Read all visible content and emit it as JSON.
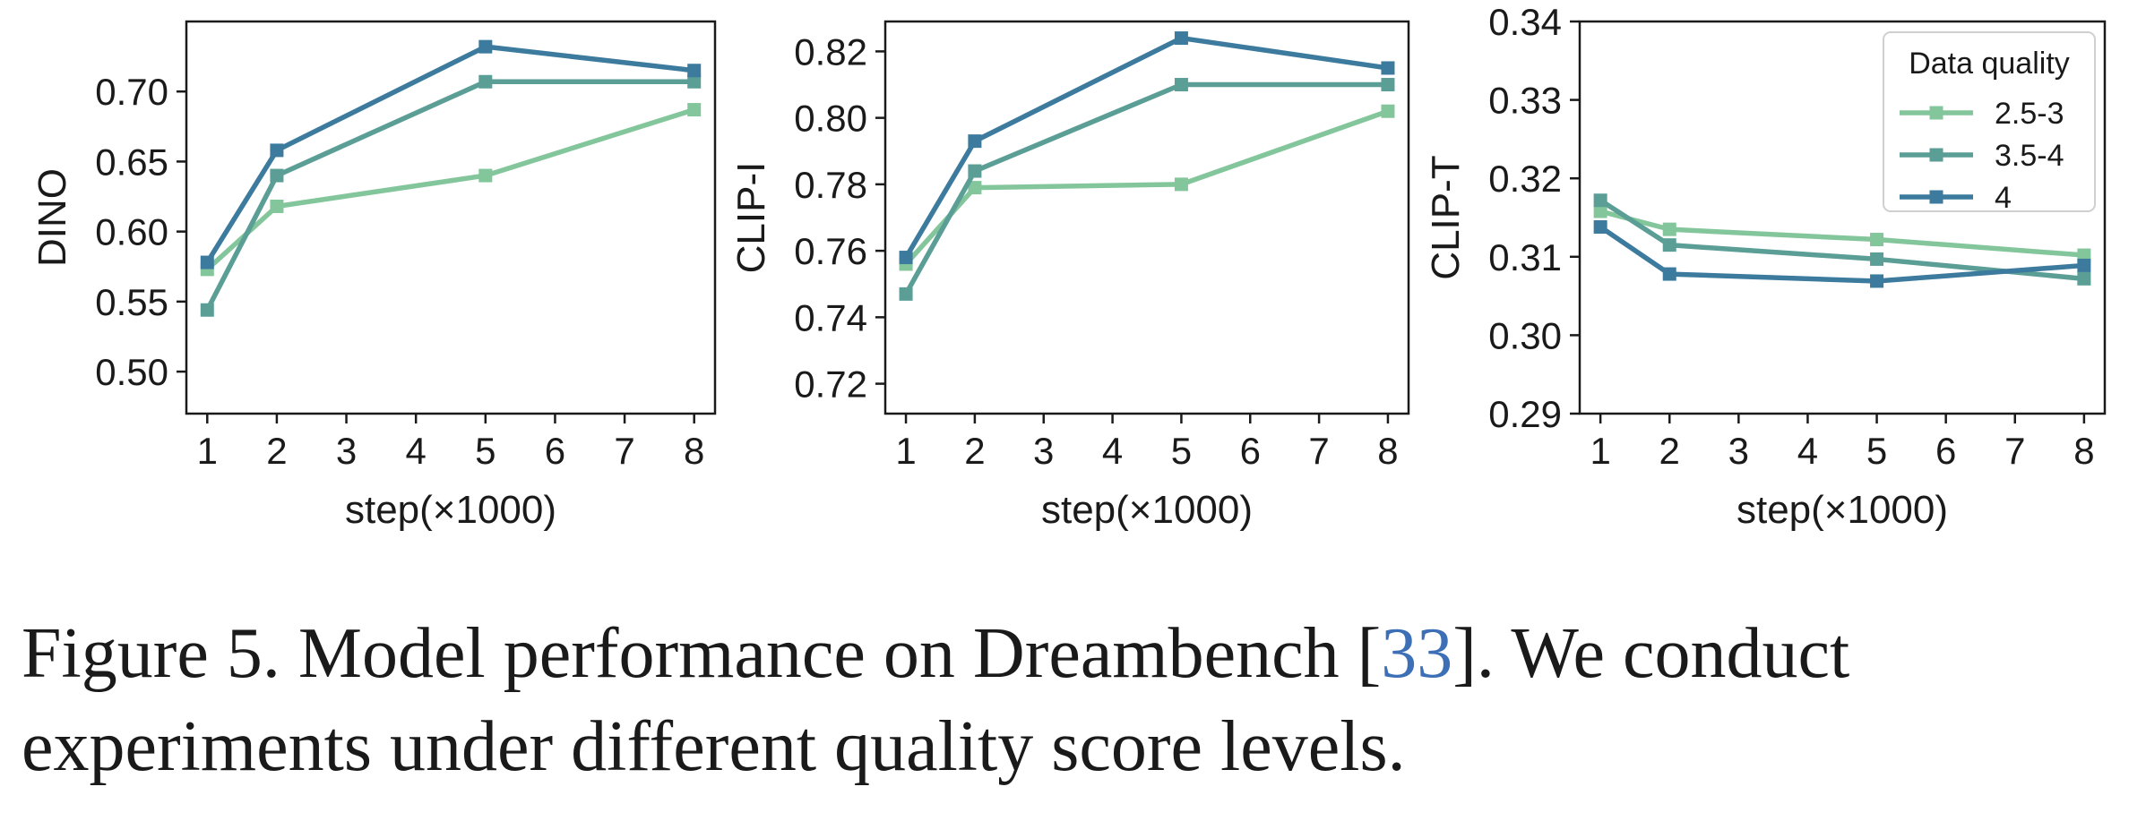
{
  "chart_data": [
    {
      "type": "line",
      "ylabel": "DINO",
      "xlabel": "step(×1000)",
      "x": [
        1,
        2,
        5,
        8
      ],
      "xticks": [
        1,
        2,
        3,
        4,
        5,
        6,
        7,
        8
      ],
      "xlim": [
        0.7,
        8.3
      ],
      "ylim": [
        0.47,
        0.75
      ],
      "yticks": [
        0.5,
        0.55,
        0.6,
        0.65,
        0.7
      ],
      "ytick_labels": [
        "0.50",
        "0.55",
        "0.60",
        "0.65",
        "0.70"
      ],
      "series": [
        {
          "name": "2.5-3",
          "values": [
            0.573,
            0.618,
            0.64,
            0.687
          ]
        },
        {
          "name": "3.5-4",
          "values": [
            0.544,
            0.64,
            0.707,
            0.707
          ]
        },
        {
          "name": "4",
          "values": [
            0.578,
            0.658,
            0.732,
            0.715
          ]
        }
      ]
    },
    {
      "type": "line",
      "ylabel": "CLIP-I",
      "xlabel": "step(×1000)",
      "x": [
        1,
        2,
        5,
        8
      ],
      "xticks": [
        1,
        2,
        3,
        4,
        5,
        6,
        7,
        8
      ],
      "xlim": [
        0.7,
        8.3
      ],
      "ylim": [
        0.711,
        0.829
      ],
      "yticks": [
        0.72,
        0.74,
        0.76,
        0.78,
        0.8,
        0.82
      ],
      "ytick_labels": [
        "0.72",
        "0.74",
        "0.76",
        "0.78",
        "0.80",
        "0.82"
      ],
      "series": [
        {
          "name": "2.5-3",
          "values": [
            0.756,
            0.779,
            0.78,
            0.802
          ]
        },
        {
          "name": "3.5-4",
          "values": [
            0.747,
            0.784,
            0.81,
            0.81
          ]
        },
        {
          "name": "4",
          "values": [
            0.758,
            0.793,
            0.824,
            0.815
          ]
        }
      ]
    },
    {
      "type": "line",
      "ylabel": "CLIP-T",
      "xlabel": "step(×1000)",
      "x": [
        1,
        2,
        5,
        8
      ],
      "xticks": [
        1,
        2,
        3,
        4,
        5,
        6,
        7,
        8
      ],
      "xlim": [
        0.7,
        8.3
      ],
      "ylim": [
        0.29,
        0.34
      ],
      "yticks": [
        0.29,
        0.3,
        0.31,
        0.32,
        0.33,
        0.34
      ],
      "ytick_labels": [
        "0.29",
        "0.30",
        "0.31",
        "0.32",
        "0.33",
        "0.34"
      ],
      "legend_title": "Data quality",
      "legend_position": "top-right",
      "series": [
        {
          "name": "2.5-3",
          "values": [
            0.3158,
            0.3135,
            0.3122,
            0.3102
          ]
        },
        {
          "name": "3.5-4",
          "values": [
            0.3172,
            0.3115,
            0.3097,
            0.3072
          ]
        },
        {
          "name": "4",
          "values": [
            0.3138,
            0.3078,
            0.3069,
            0.3089
          ]
        }
      ]
    }
  ],
  "colors": {
    "2.5-3": "#84c69b",
    "3.5-4": "#5a9e96",
    "4": "#3c7a9e",
    "axis": "#1a1a1a",
    "ref": "#3d6fb6"
  },
  "caption": {
    "prefix": "Figure 5.  Model performance on Dreambench [",
    "ref": "33",
    "suffix": "].  We conduct experiments under different quality score levels."
  }
}
